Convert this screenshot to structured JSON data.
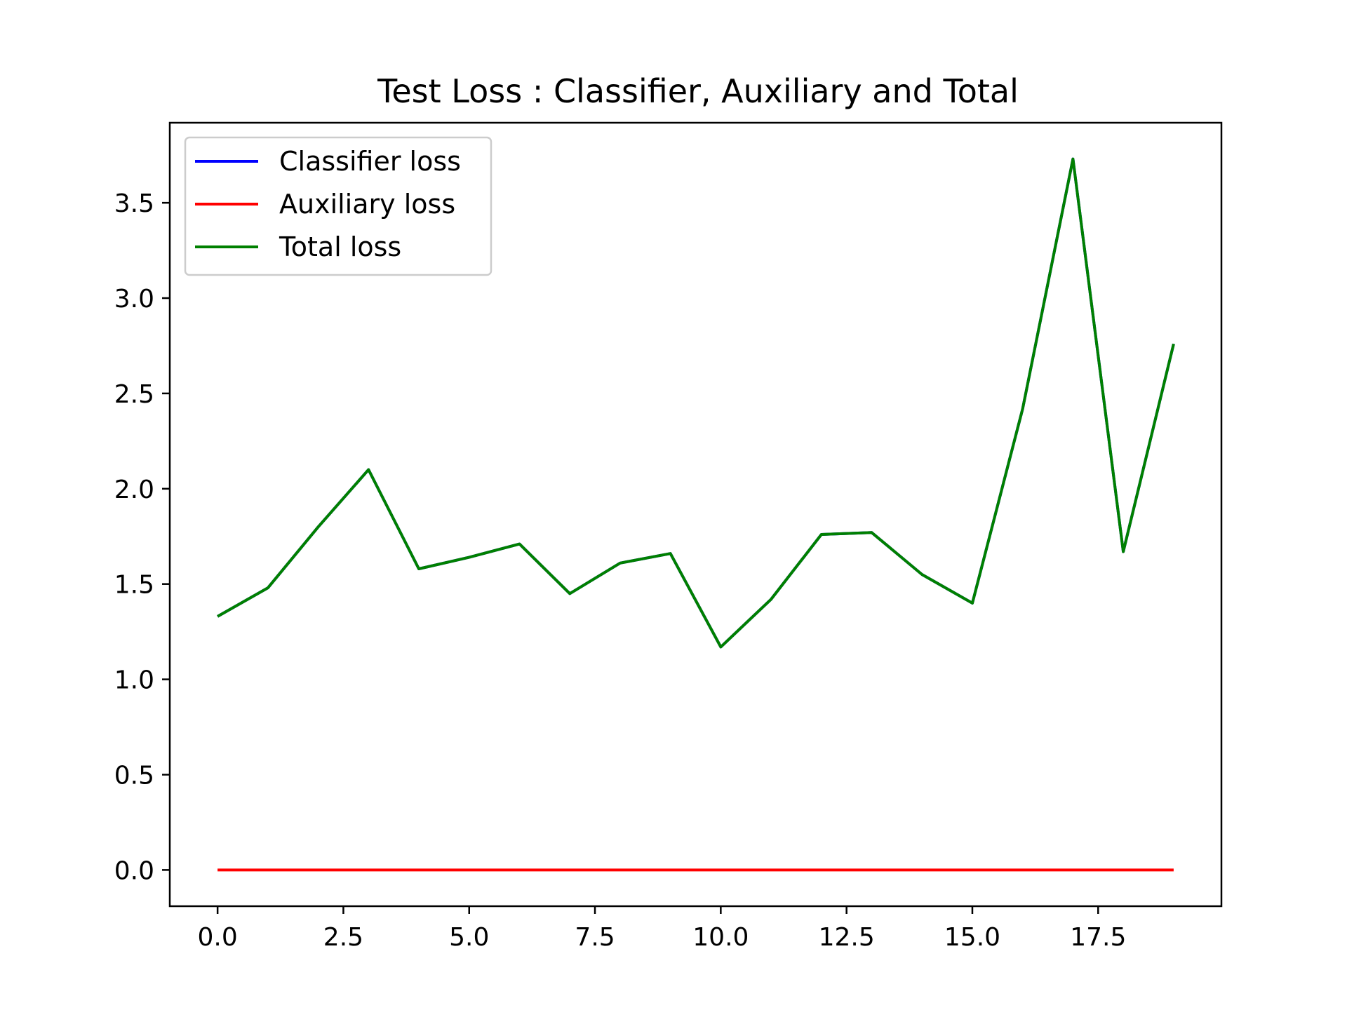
{
  "chart_data": {
    "type": "line",
    "title": "Test Loss : Classifier, Auxiliary and Total",
    "xlabel": "",
    "ylabel": "",
    "xlim": [
      -0.95,
      19.95
    ],
    "ylim": [
      -0.19,
      3.92
    ],
    "xticks": [
      "0.0",
      "2.5",
      "5.0",
      "7.5",
      "10.0",
      "12.5",
      "15.0",
      "17.5"
    ],
    "xtick_values": [
      0,
      2.5,
      5,
      7.5,
      10,
      12.5,
      15,
      17.5
    ],
    "yticks": [
      "0.0",
      "0.5",
      "1.0",
      "1.5",
      "2.0",
      "2.5",
      "3.0",
      "3.5"
    ],
    "ytick_values": [
      0,
      0.5,
      1,
      1.5,
      2,
      2.5,
      3,
      3.5
    ],
    "grid": false,
    "legend_position": "upper-left",
    "x": [
      0,
      1,
      2,
      3,
      4,
      5,
      6,
      7,
      8,
      9,
      10,
      11,
      12,
      13,
      14,
      15,
      16,
      17,
      18,
      19
    ],
    "series": [
      {
        "name": "Classifier loss",
        "color": "#0000ff",
        "values": [
          1.33,
          1.48,
          1.8,
          2.1,
          1.58,
          1.64,
          1.71,
          1.45,
          1.61,
          1.66,
          1.17,
          1.42,
          1.76,
          1.77,
          1.55,
          1.4,
          2.42,
          3.73,
          1.67,
          2.76
        ]
      },
      {
        "name": "Auxiliary loss",
        "color": "#ff0000",
        "values": [
          0,
          0,
          0,
          0,
          0,
          0,
          0,
          0,
          0,
          0,
          0,
          0,
          0,
          0,
          0,
          0,
          0,
          0,
          0,
          0
        ]
      },
      {
        "name": "Total loss",
        "color": "#008000",
        "values": [
          1.33,
          1.48,
          1.8,
          2.1,
          1.58,
          1.64,
          1.71,
          1.45,
          1.61,
          1.66,
          1.17,
          1.42,
          1.76,
          1.77,
          1.55,
          1.4,
          2.42,
          3.73,
          1.67,
          2.76
        ]
      }
    ]
  }
}
